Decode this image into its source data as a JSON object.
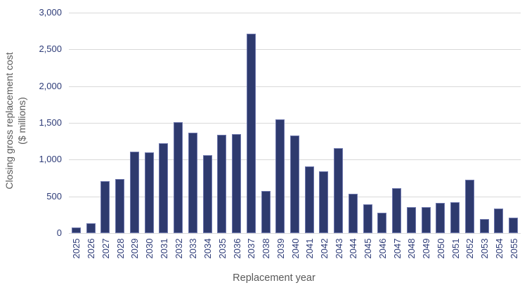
{
  "chart_data": {
    "type": "bar",
    "title": "",
    "xlabel": "Replacement year",
    "ylabel_line1": "Closing gross replacement cost",
    "ylabel_line2": "($ millions)",
    "categories": [
      "2025",
      "2026",
      "2027",
      "2028",
      "2029",
      "2030",
      "2031",
      "2032",
      "2033",
      "2034",
      "2035",
      "2036",
      "2037",
      "2038",
      "2039",
      "2040",
      "2041",
      "2042",
      "2043",
      "2044",
      "2045",
      "2046",
      "2047",
      "2048",
      "2049",
      "2050",
      "2051",
      "2052",
      "2053",
      "2054",
      "2055"
    ],
    "values": [
      80,
      130,
      705,
      740,
      1105,
      1095,
      1220,
      1510,
      1365,
      1060,
      1340,
      1350,
      2715,
      570,
      1545,
      1330,
      910,
      840,
      1160,
      535,
      395,
      280,
      610,
      350,
      350,
      415,
      420,
      730,
      190,
      330,
      210
    ],
    "ylim": [
      0,
      3000
    ],
    "ytick_step": 500,
    "yticks": [
      "0",
      "500",
      "1,000",
      "1,500",
      "2,000",
      "2,500",
      "3,000"
    ],
    "grid": true,
    "legend": "none"
  },
  "colors": {
    "background": "#FFFFFF",
    "bar_fill": "#2E3A6E",
    "bar_border": "#6E77AD",
    "gridline": "#D9D9D9",
    "axis_title": "#595959",
    "tick_label": "#2E3C78"
  }
}
